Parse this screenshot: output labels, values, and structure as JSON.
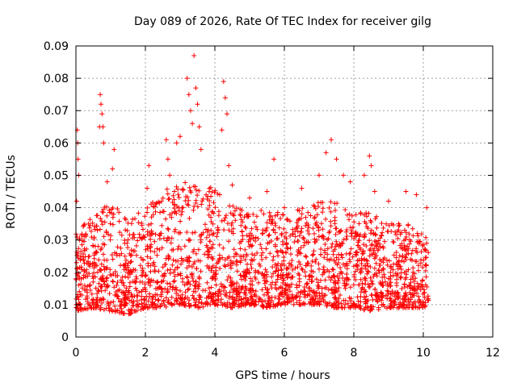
{
  "chart_data": {
    "type": "scatter",
    "title": "Day 089 of 2026, Rate Of TEC Index for receiver gilg",
    "xlabel": "GPS time / hours",
    "ylabel": "ROTI / TECUs",
    "xlim": [
      0,
      12
    ],
    "ylim": [
      0,
      0.09
    ],
    "x_ticks": [
      0,
      2,
      4,
      6,
      8,
      10,
      12
    ],
    "x_tick_labels": [
      "0",
      "2",
      "4",
      "6",
      "8",
      "10",
      "12"
    ],
    "y_ticks": [
      0,
      0.01,
      0.02,
      0.03,
      0.04,
      0.05,
      0.06,
      0.07,
      0.08,
      0.09
    ],
    "y_tick_labels": [
      "0",
      "0.01",
      "0.02",
      "0.03",
      "0.04",
      "0.05",
      "0.06",
      "0.07",
      "0.08",
      "0.09"
    ],
    "grid": true,
    "marker": "+",
    "series": [
      {
        "name": "ROTI",
        "color": "#ff0000",
        "x_range": [
          0.0,
          10.15
        ],
        "points": [
          [
            0.0,
            0.018
          ],
          [
            0.02,
            0.042
          ],
          [
            0.04,
            0.064
          ],
          [
            0.05,
            0.06
          ],
          [
            0.06,
            0.055
          ],
          [
            0.08,
            0.05
          ],
          [
            0.1,
            0.03
          ],
          [
            0.12,
            0.01
          ],
          [
            0.14,
            0.025
          ],
          [
            0.7,
            0.075
          ],
          [
            0.72,
            0.072
          ],
          [
            0.75,
            0.069
          ],
          [
            0.68,
            0.065
          ],
          [
            0.78,
            0.065
          ],
          [
            0.8,
            0.06
          ],
          [
            1.1,
            0.058
          ],
          [
            1.05,
            0.052
          ],
          [
            0.9,
            0.048
          ],
          [
            2.1,
            0.053
          ],
          [
            2.05,
            0.046
          ],
          [
            2.6,
            0.061
          ],
          [
            2.65,
            0.055
          ],
          [
            2.7,
            0.05
          ],
          [
            2.9,
            0.06
          ],
          [
            3.0,
            0.062
          ],
          [
            3.2,
            0.08
          ],
          [
            3.25,
            0.075
          ],
          [
            3.3,
            0.07
          ],
          [
            3.4,
            0.087
          ],
          [
            3.45,
            0.077
          ],
          [
            3.5,
            0.072
          ],
          [
            3.55,
            0.065
          ],
          [
            3.6,
            0.058
          ],
          [
            3.35,
            0.066
          ],
          [
            4.25,
            0.079
          ],
          [
            4.3,
            0.074
          ],
          [
            4.35,
            0.069
          ],
          [
            4.2,
            0.064
          ],
          [
            4.4,
            0.053
          ],
          [
            4.5,
            0.047
          ],
          [
            5.0,
            0.043
          ],
          [
            5.5,
            0.045
          ],
          [
            5.7,
            0.055
          ],
          [
            6.0,
            0.04
          ],
          [
            6.5,
            0.046
          ],
          [
            7.0,
            0.05
          ],
          [
            7.2,
            0.057
          ],
          [
            7.35,
            0.061
          ],
          [
            7.5,
            0.055
          ],
          [
            7.7,
            0.05
          ],
          [
            7.9,
            0.048
          ],
          [
            8.3,
            0.05
          ],
          [
            8.45,
            0.056
          ],
          [
            8.5,
            0.053
          ],
          [
            8.6,
            0.045
          ],
          [
            9.0,
            0.042
          ],
          [
            9.5,
            0.045
          ],
          [
            9.8,
            0.044
          ],
          [
            10.1,
            0.04
          ]
        ],
        "envelope_hours": [
          0,
          0.5,
          1,
          1.5,
          2,
          2.5,
          3,
          3.5,
          4,
          4.5,
          5,
          5.5,
          6,
          6.5,
          7,
          7.5,
          8,
          8.5,
          9,
          9.5,
          10,
          10.15
        ],
        "envelope_low": [
          0.008,
          0.009,
          0.008,
          0.007,
          0.009,
          0.009,
          0.01,
          0.009,
          0.01,
          0.009,
          0.01,
          0.009,
          0.01,
          0.01,
          0.01,
          0.009,
          0.009,
          0.008,
          0.009,
          0.009,
          0.009,
          0.01
        ],
        "envelope_high": [
          0.032,
          0.038,
          0.042,
          0.036,
          0.04,
          0.045,
          0.048,
          0.048,
          0.046,
          0.042,
          0.038,
          0.04,
          0.038,
          0.04,
          0.042,
          0.042,
          0.04,
          0.038,
          0.036,
          0.036,
          0.034,
          0.032
        ],
        "point_count": 2400,
        "seed": 89
      }
    ]
  }
}
